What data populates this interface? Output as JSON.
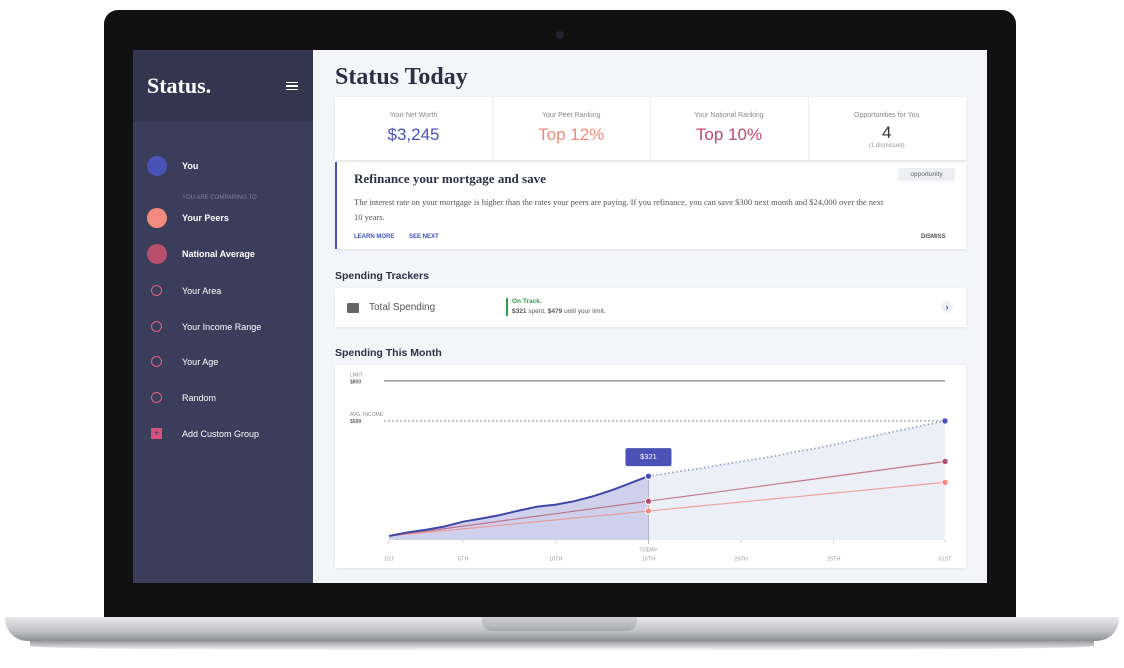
{
  "sidebar": {
    "brand": "Status.",
    "comparing_label": "YOU ARE COMPARING TO",
    "groups": [
      "Your Area",
      "Your Income Range",
      "Your Age",
      "Random"
    ],
    "add_group": "Add Custom Group"
  },
  "header": {
    "title": "Status Today"
  },
  "stats": [
    {
      "label": "Your Net Worth",
      "value": "$3,245"
    },
    {
      "label": "Your Peer Ranking",
      "value": "Top 12%"
    },
    {
      "label": "Your National Ranking",
      "value": "Top 10%"
    },
    {
      "label": "Opportunities for You",
      "value": "4",
      "note": "(1 dismissed)"
    }
  ],
  "opportunity": {
    "title": "Refinance your mortgage and save",
    "tag": "opportunity",
    "body": "The interest rate on your mortgage is higher than the rates your peers are paying. If you refinance, you can save $300 next month and $24,000 over the next 10 years.",
    "actions": [
      "LEARN MORE",
      "SEE NEXT"
    ],
    "dismiss": "DISMISS"
  },
  "trackers": {
    "heading": "Spending Trackers",
    "name": "Total Spending",
    "status": "On Track.",
    "detail": [
      "$321",
      " spent, ",
      "$479",
      " until your limit."
    ]
  },
  "chart_section": {
    "heading": "Spending This Month"
  },
  "chart_data": {
    "type": "line",
    "x": [
      1,
      2,
      3,
      4,
      5,
      6,
      7,
      8,
      9,
      10,
      11,
      12,
      13,
      14,
      15,
      16,
      17,
      18,
      19,
      20,
      21,
      22,
      23,
      24,
      25,
      26,
      27,
      28,
      29,
      30,
      31
    ],
    "xlim": [
      1,
      31
    ],
    "ylim": [
      0,
      840
    ],
    "xticks": [
      {
        "value": 1,
        "label": "1ST"
      },
      {
        "value": 5,
        "label": "5TH"
      },
      {
        "value": 10,
        "label": "10TH"
      },
      {
        "value": 15,
        "label": "15TH"
      },
      {
        "value": 20,
        "label": "20TH"
      },
      {
        "value": 25,
        "label": "25TH"
      },
      {
        "value": 31,
        "label": "31ST"
      }
    ],
    "today": {
      "value": 15,
      "label": "TODAY"
    },
    "callout": {
      "x": 15,
      "value": 321,
      "label": "$321"
    },
    "reference_lines": [
      {
        "label": "LIMIT",
        "value_label": "$800",
        "value": 800,
        "style": "solid"
      },
      {
        "label": "AVG. INCOME:",
        "value_label": "$599",
        "value": 599,
        "style": "dashed"
      }
    ],
    "series": [
      {
        "name": "You",
        "color": "#4a52b8",
        "values": [
          20,
          38,
          52,
          68,
          92,
          108,
          126,
          148,
          168,
          178,
          195,
          220,
          250,
          285,
          321,
          null,
          null,
          null,
          null,
          null,
          null,
          null,
          null,
          null,
          null,
          null,
          null,
          null,
          null,
          null,
          null
        ],
        "projected_values": [
          null,
          null,
          null,
          null,
          null,
          null,
          null,
          null,
          null,
          null,
          null,
          null,
          null,
          null,
          321,
          335,
          350,
          362,
          380,
          395,
          410,
          425,
          445,
          460,
          480,
          500,
          520,
          540,
          560,
          580,
          599
        ]
      },
      {
        "name": "Your Peers",
        "color": "#f28b7d",
        "values": [
          20,
          29,
          38,
          47,
          56,
          65,
          74,
          83,
          92,
          101,
          110,
          119,
          128,
          137,
          146,
          155,
          164,
          173,
          182,
          191,
          200,
          209,
          218,
          227,
          236,
          245,
          254,
          263,
          272,
          281,
          290
        ]
      },
      {
        "name": "National Average",
        "color": "#b9506b",
        "values": [
          20,
          32.5,
          45,
          57.5,
          70,
          82.5,
          95,
          107.5,
          120,
          132.5,
          145,
          157.5,
          170,
          182.5,
          195,
          207.5,
          220,
          232.5,
          245,
          257.5,
          270,
          282.5,
          295,
          307.5,
          320,
          332.5,
          345,
          357.5,
          370,
          382.5,
          395
        ]
      }
    ]
  }
}
